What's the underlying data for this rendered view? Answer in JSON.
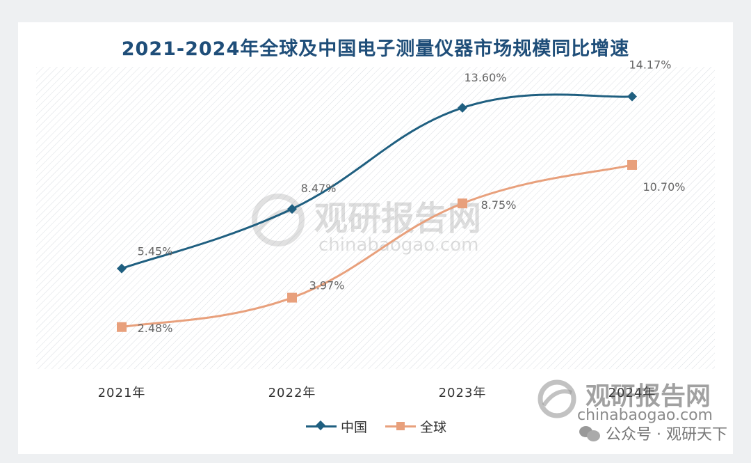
{
  "page": {
    "watermark_center_name": "观研报告网",
    "watermark_center_url": "chinabaogao.com",
    "brand_name": "观研报告网",
    "brand_url": "chinabaogao.com",
    "wechat_text": "公众号 · 观研天下"
  },
  "colors": {
    "china": "#1f5f80",
    "global": "#e8a07c",
    "title": "#1f4e79"
  },
  "chart_data": {
    "type": "line",
    "title": "2021-2024年全球及中国电子测量仪器市场规模同比增速",
    "categories": [
      "2021年",
      "2022年",
      "2023年",
      "2024年"
    ],
    "ylim": [
      0,
      15.5
    ],
    "grid": false,
    "legend_position": "bottom",
    "series": [
      {
        "name": "中国",
        "marker": "diamond",
        "values": [
          5.45,
          8.47,
          13.6,
          14.17
        ],
        "labels": [
          "5.45%",
          "8.47%",
          "13.60%",
          "14.17%"
        ]
      },
      {
        "name": "全球",
        "marker": "square",
        "values": [
          2.48,
          3.97,
          8.75,
          10.7
        ],
        "labels": [
          "2.48%",
          "3.97%",
          "8.75%",
          "10.70%"
        ]
      }
    ]
  }
}
